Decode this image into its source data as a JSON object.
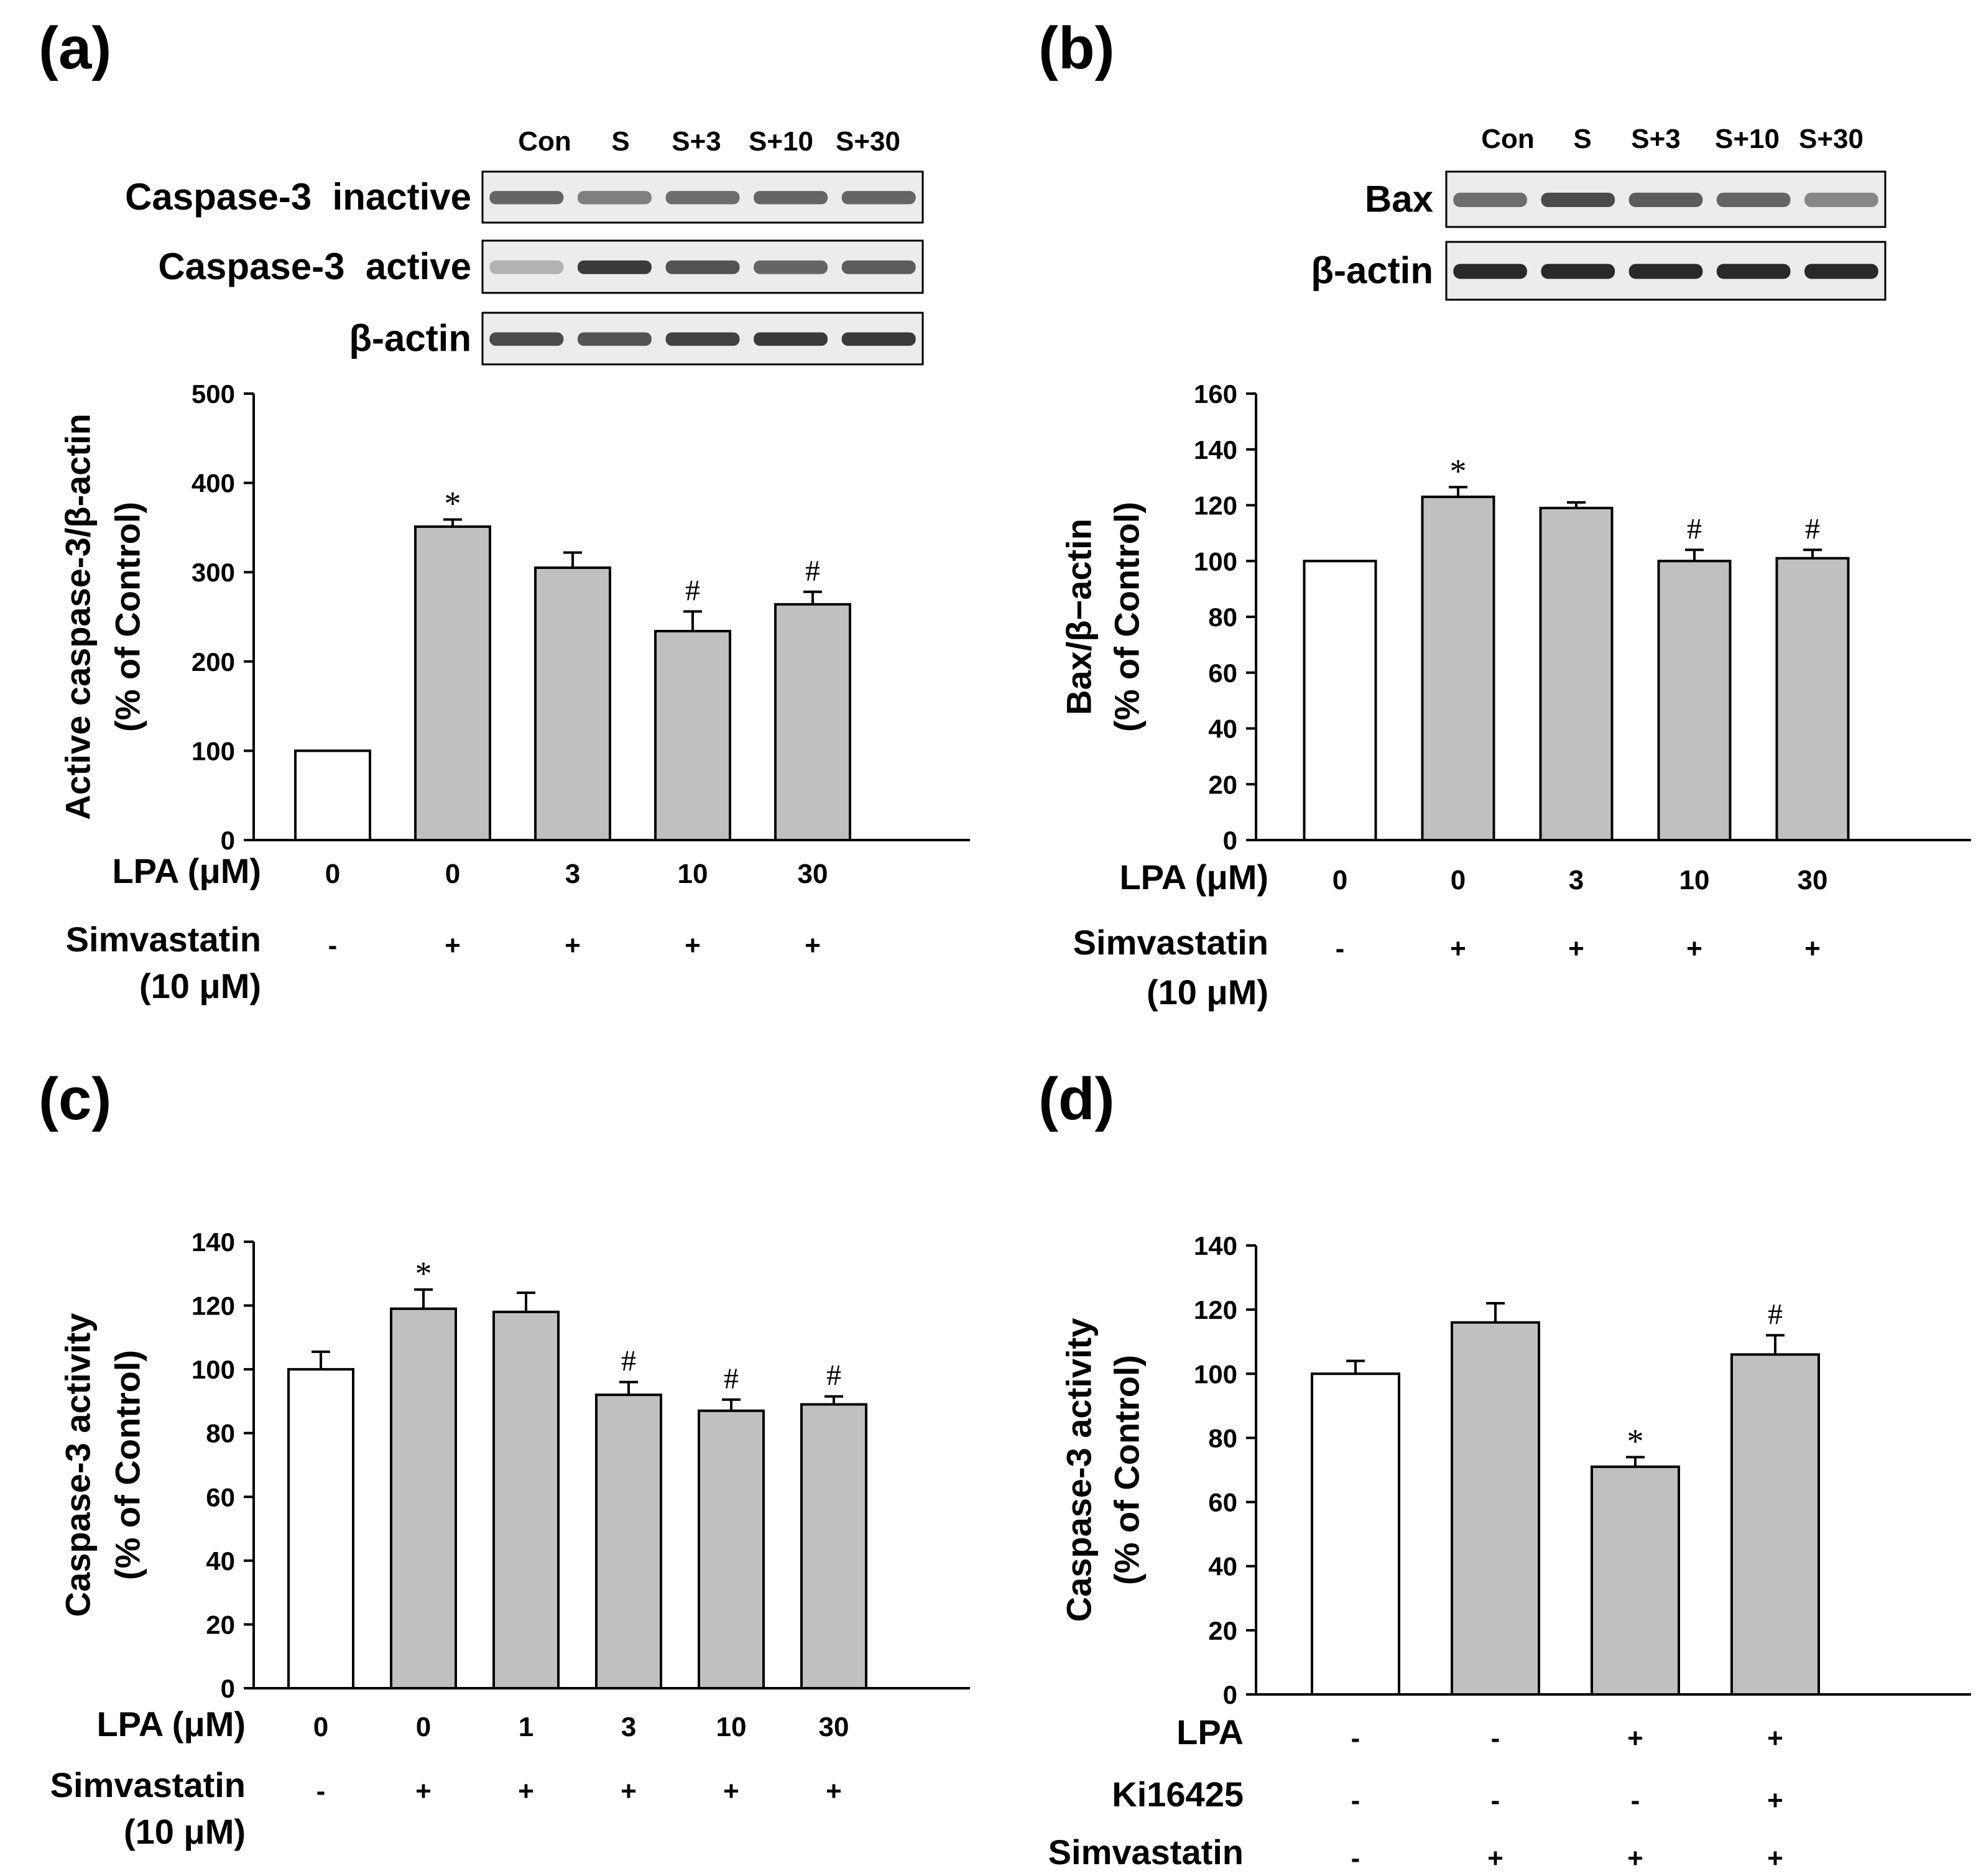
{
  "chart_data": [
    {
      "panel": "(a)",
      "type": "bar",
      "blot": {
        "lanes": [
          "Con",
          "S",
          "S+3",
          "S+10",
          "S+30"
        ],
        "rows": [
          {
            "label": "Caspase-3  inactive",
            "bands": [
              0.6,
              0.45,
              0.55,
              0.6,
              0.6
            ]
          },
          {
            "label": "Caspase-3  active",
            "bands": [
              0.15,
              0.85,
              0.7,
              0.6,
              0.65
            ]
          },
          {
            "label": "β-actin",
            "bands": [
              0.75,
              0.7,
              0.8,
              0.85,
              0.85
            ]
          }
        ]
      },
      "ylabel": [
        "Active caspase-3/β-actin",
        "(% of Control)"
      ],
      "ylim": [
        0,
        500
      ],
      "yticks": [
        0,
        100,
        200,
        300,
        400,
        500
      ],
      "values": [
        100,
        351,
        305,
        234,
        264
      ],
      "errors": [
        0,
        8,
        17,
        22,
        14
      ],
      "fills": [
        "#ffffff",
        "#c0c0c0",
        "#c0c0c0",
        "#c0c0c0",
        "#c0c0c0"
      ],
      "annotations": [
        "",
        "*",
        "",
        "#",
        "#"
      ],
      "xrows": [
        {
          "label": [
            "LPA (μM)"
          ],
          "values": [
            "0",
            "0",
            "3",
            "10",
            "30"
          ]
        },
        {
          "label": [
            "Simvastatin",
            "(10 μM)"
          ],
          "values": [
            "-",
            "+",
            "+",
            "+",
            "+"
          ]
        }
      ]
    },
    {
      "panel": "(b)",
      "type": "bar",
      "blot": {
        "lanes": [
          "Con",
          "S",
          "S+3",
          "S+10",
          "S+30"
        ],
        "rows": [
          {
            "label": "Bax",
            "bands": [
              0.55,
              0.75,
              0.65,
              0.6,
              0.4
            ]
          },
          {
            "label": "β-actin",
            "bands": [
              0.95,
              0.95,
              0.95,
              0.95,
              0.95
            ]
          }
        ]
      },
      "ylabel": [
        "Bax/β−actin",
        "(% of Control)"
      ],
      "ylim": [
        0,
        160
      ],
      "yticks": [
        0,
        20,
        40,
        60,
        80,
        100,
        120,
        140,
        160
      ],
      "values": [
        100,
        123,
        119,
        100,
        101
      ],
      "errors": [
        0,
        3.5,
        2,
        4,
        3
      ],
      "fills": [
        "#ffffff",
        "#c0c0c0",
        "#c0c0c0",
        "#c0c0c0",
        "#c0c0c0"
      ],
      "annotations": [
        "",
        "*",
        "",
        "#",
        "#"
      ],
      "xrows": [
        {
          "label": [
            "LPA (μM)"
          ],
          "values": [
            "0",
            "0",
            "3",
            "10",
            "30"
          ]
        },
        {
          "label": [
            "Simvastatin",
            "(10 μM)"
          ],
          "values": [
            "-",
            "+",
            "+",
            "+",
            "+"
          ]
        }
      ]
    },
    {
      "panel": "(c)",
      "type": "bar",
      "ylabel": [
        "Caspase-3 activity",
        "(% of Control)"
      ],
      "ylim": [
        0,
        140
      ],
      "yticks": [
        0,
        20,
        40,
        60,
        80,
        100,
        120,
        140
      ],
      "values": [
        100,
        119,
        118,
        92,
        87,
        89
      ],
      "errors": [
        5.5,
        6,
        6,
        4,
        3.5,
        2.5
      ],
      "fills": [
        "#ffffff",
        "#c0c0c0",
        "#c0c0c0",
        "#c0c0c0",
        "#c0c0c0",
        "#c0c0c0"
      ],
      "annotations": [
        "",
        "*",
        "",
        "#",
        "#",
        "#"
      ],
      "xrows": [
        {
          "label": [
            "LPA (μM)"
          ],
          "values": [
            "0",
            "0",
            "1",
            "3",
            "10",
            "30"
          ]
        },
        {
          "label": [
            "Simvastatin",
            "(10 μM)"
          ],
          "values": [
            "-",
            "+",
            "+",
            "+",
            "+",
            "+"
          ]
        }
      ]
    },
    {
      "panel": "(d)",
      "type": "bar",
      "ylabel": [
        "Caspase-3 activity",
        "(% of Control)"
      ],
      "ylim": [
        0,
        140
      ],
      "yticks": [
        0,
        20,
        40,
        60,
        80,
        100,
        120,
        140
      ],
      "values": [
        100,
        116,
        71,
        106
      ],
      "errors": [
        4,
        6,
        3,
        6
      ],
      "fills": [
        "#ffffff",
        "#c0c0c0",
        "#c0c0c0",
        "#c0c0c0"
      ],
      "annotations": [
        "",
        "",
        "*",
        "#"
      ],
      "xrows": [
        {
          "label": [
            "LPA"
          ],
          "values": [
            "-",
            "-",
            "+",
            "+"
          ]
        },
        {
          "label": [
            "Ki16425"
          ],
          "values": [
            "-",
            "-",
            "-",
            "+"
          ]
        },
        {
          "label": [
            "Simvastatin"
          ],
          "values": [
            "-",
            "+",
            "+",
            "+"
          ]
        }
      ]
    }
  ]
}
